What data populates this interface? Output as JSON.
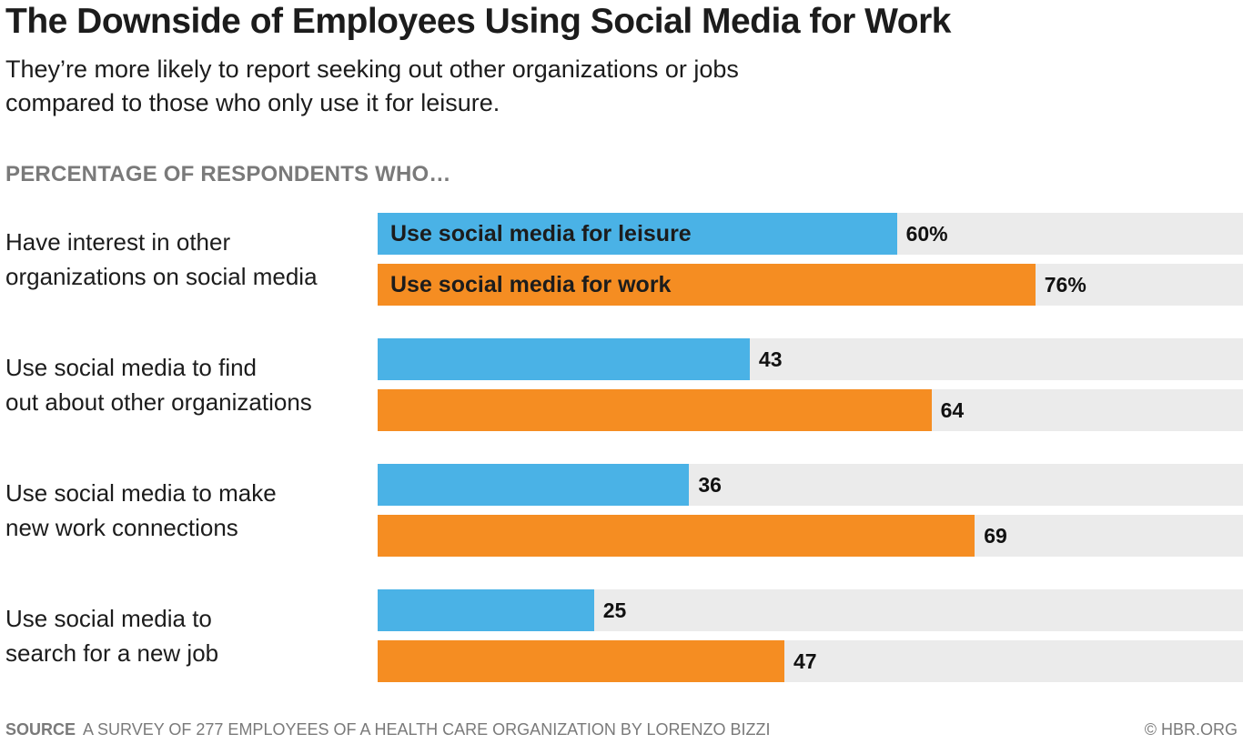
{
  "chart_data": {
    "type": "bar",
    "orientation": "horizontal",
    "title": "The Downside of Employees Using Social Media for Work",
    "subtitle": "They’re more likely to report seeking out other organizations or jobs compared to those who only use it for leisure.",
    "section_label": "PERCENTAGE OF RESPONDENTS WHO…",
    "xlim": [
      0,
      100
    ],
    "unit": "%",
    "categories": [
      "Have interest in other organizations on social media",
      "Use social media to find out about other organizations",
      "Use social media to make new work connections",
      "Use social media to search for a new job"
    ],
    "category_lines": [
      [
        "Have interest in other",
        "organizations on social media"
      ],
      [
        "Use social media to find",
        "out about other organizations"
      ],
      [
        "Use social media to make",
        "new work connections"
      ],
      [
        "Use social media to",
        "search for a new job"
      ]
    ],
    "series": [
      {
        "name": "Use social media for leisure",
        "color": "#4ab2e6",
        "values": [
          60,
          43,
          36,
          25
        ],
        "value_labels": [
          "60%",
          "43",
          "36",
          "25"
        ]
      },
      {
        "name": "Use social media for work",
        "color": "#f58d22",
        "values": [
          76,
          64,
          69,
          47
        ],
        "value_labels": [
          "76%",
          "64",
          "69",
          "47"
        ]
      }
    ],
    "track_color": "#ebebeb",
    "legend": "inline-in-first-bars"
  },
  "footer": {
    "source_label": "SOURCE",
    "source_text": "A SURVEY OF 277 EMPLOYEES OF A HEALTH CARE ORGANIZATION BY LORENZO BIZZI",
    "copyright": "© HBR.ORG"
  }
}
